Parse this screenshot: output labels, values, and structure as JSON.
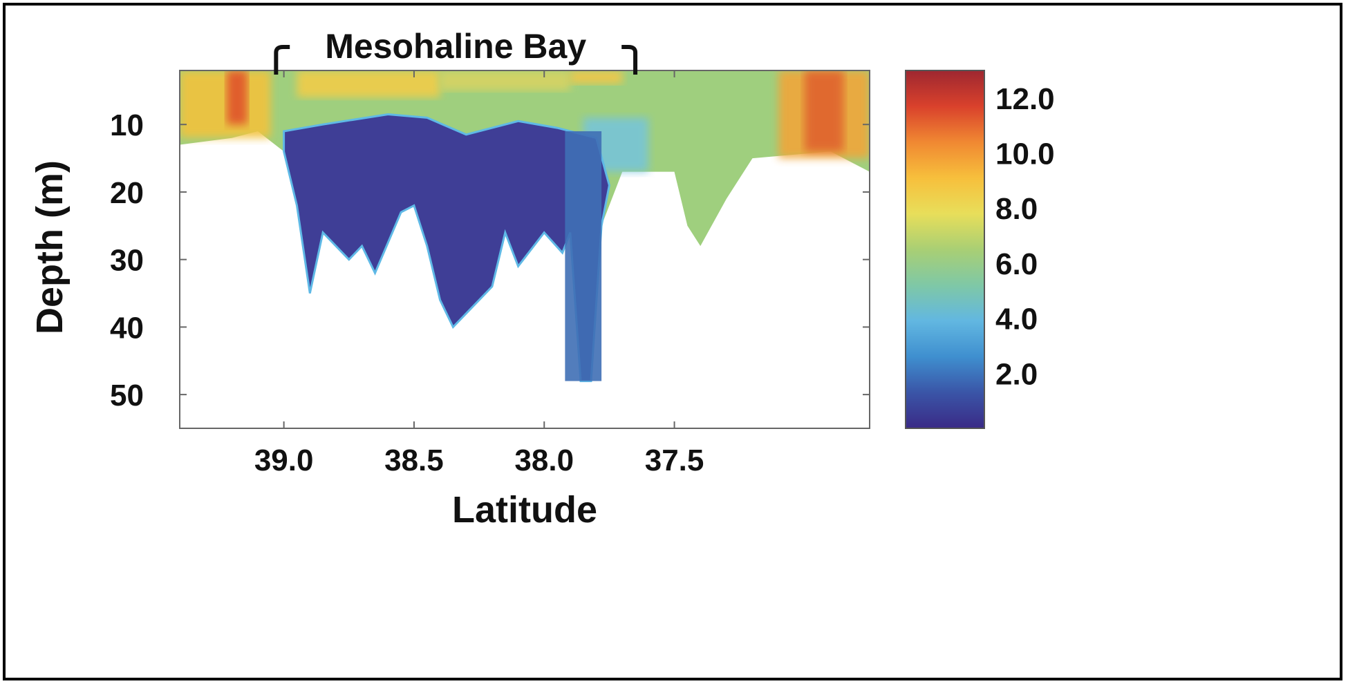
{
  "chart_data": {
    "type": "heatmap",
    "title": "",
    "xlabel": "Latitude",
    "ylabel": "Depth (m)",
    "xlim": [
      39.4,
      36.75
    ],
    "ylim": [
      55,
      2
    ],
    "x_ticks": [
      39.0,
      38.5,
      38.0,
      37.5
    ],
    "x_tick_labels": [
      "39.0",
      "38.5",
      "38.0",
      "37.5"
    ],
    "y_ticks": [
      10,
      20,
      30,
      40,
      50
    ],
    "y_tick_labels": [
      "10",
      "20",
      "30",
      "40",
      "50"
    ],
    "annotation": {
      "text": "Mesohaline Bay",
      "x_start": 39.03,
      "x_end": 37.65
    },
    "colorbar": {
      "range": [
        0,
        13
      ],
      "tick_values": [
        2,
        4,
        6,
        8,
        10,
        12
      ],
      "tick_labels": [
        "2.0",
        "4.0",
        "6.0",
        "8.0",
        "10.0",
        "12.0"
      ],
      "colors": [
        "#3a2a86",
        "#3a55a7",
        "#3f8fcf",
        "#62b7e1",
        "#7fc8a6",
        "#a9cf74",
        "#e8de5a",
        "#f7bf3c",
        "#f08832",
        "#d9412c",
        "#9e2730"
      ]
    },
    "bottom_profile": [
      {
        "lat": 39.4,
        "depth": 13
      },
      {
        "lat": 39.2,
        "depth": 12
      },
      {
        "lat": 39.1,
        "depth": 11
      },
      {
        "lat": 39.0,
        "depth": 14
      },
      {
        "lat": 38.95,
        "depth": 22
      },
      {
        "lat": 38.9,
        "depth": 35
      },
      {
        "lat": 38.85,
        "depth": 26
      },
      {
        "lat": 38.75,
        "depth": 30
      },
      {
        "lat": 38.7,
        "depth": 28
      },
      {
        "lat": 38.65,
        "depth": 32
      },
      {
        "lat": 38.55,
        "depth": 23
      },
      {
        "lat": 38.5,
        "depth": 22
      },
      {
        "lat": 38.45,
        "depth": 28
      },
      {
        "lat": 38.4,
        "depth": 36
      },
      {
        "lat": 38.35,
        "depth": 40
      },
      {
        "lat": 38.3,
        "depth": 38
      },
      {
        "lat": 38.25,
        "depth": 36
      },
      {
        "lat": 38.2,
        "depth": 34
      },
      {
        "lat": 38.15,
        "depth": 26
      },
      {
        "lat": 38.1,
        "depth": 31
      },
      {
        "lat": 38.0,
        "depth": 26
      },
      {
        "lat": 37.93,
        "depth": 29
      },
      {
        "lat": 37.9,
        "depth": 26
      },
      {
        "lat": 37.86,
        "depth": 48
      },
      {
        "lat": 37.82,
        "depth": 48
      },
      {
        "lat": 37.78,
        "depth": 25
      },
      {
        "lat": 37.7,
        "depth": 17
      },
      {
        "lat": 37.5,
        "depth": 17
      },
      {
        "lat": 37.45,
        "depth": 25
      },
      {
        "lat": 37.4,
        "depth": 28
      },
      {
        "lat": 37.3,
        "depth": 21
      },
      {
        "lat": 37.2,
        "depth": 15
      },
      {
        "lat": 36.9,
        "depth": 14
      },
      {
        "lat": 36.75,
        "depth": 17
      }
    ],
    "low_do_upper_boundary": [
      {
        "lat": 39.0,
        "depth": 11
      },
      {
        "lat": 38.85,
        "depth": 10
      },
      {
        "lat": 38.6,
        "depth": 8.5
      },
      {
        "lat": 38.45,
        "depth": 9
      },
      {
        "lat": 38.3,
        "depth": 11.5
      },
      {
        "lat": 38.1,
        "depth": 9.5
      },
      {
        "lat": 37.95,
        "depth": 10.5
      },
      {
        "lat": 37.8,
        "depth": 12
      },
      {
        "lat": 37.75,
        "depth": 19
      }
    ]
  }
}
